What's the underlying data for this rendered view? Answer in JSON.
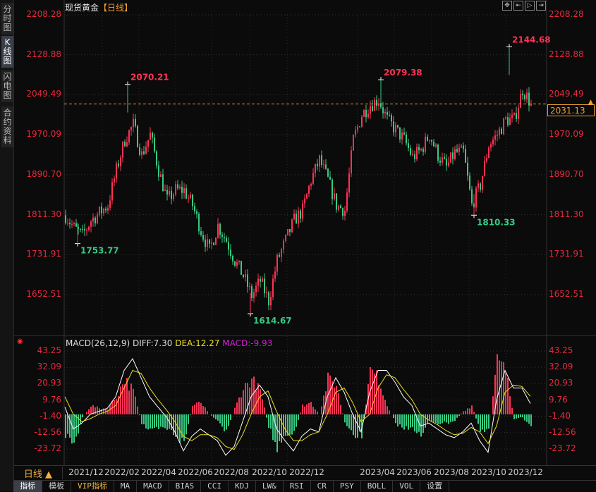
{
  "sidebar": {
    "tabs": [
      {
        "label": "分时图"
      },
      {
        "label": "K线图",
        "active": true
      },
      {
        "label": "闪电图"
      },
      {
        "label": "合约资料"
      }
    ]
  },
  "header": {
    "instrument": "现货黄金",
    "period_open": "【",
    "period": "日线",
    "period_close": "】"
  },
  "toolbar": {
    "icons": [
      "crosshair-icon",
      "zoom-left-icon",
      "zoom-right-icon",
      "move-right-icon"
    ]
  },
  "colors": {
    "up": "#ff3355",
    "down": "#38c983",
    "axis_label": "#e8283e",
    "diff": "#ffffff",
    "dea": "#e8e020",
    "macd": "#d020d0",
    "price_line": "#f0a030"
  },
  "current_price": "2031.13",
  "bottom": {
    "period_button": "日线 ▲",
    "tabs": [
      "指标",
      "模板",
      "VIP指标",
      "MA",
      "MACD",
      "BIAS",
      "CCI",
      "KDJ",
      "LW&",
      "RSI",
      "CR",
      "PSY",
      "BOLL",
      "VOL",
      "设置"
    ]
  },
  "macd": {
    "name": "MACD(26,12,9)",
    "diff_label": "DIFF:7.30",
    "dea_label": "DEA:12.27",
    "macd_label": "MACD:-9.93"
  },
  "chart_data": [
    {
      "type": "candlestick",
      "title": "现货黄金【日线】",
      "ylim": [
        1652.51,
        2208.28
      ],
      "y_ticks": [
        "2208.28",
        "2128.88",
        "2049.49",
        "1970.09",
        "1890.70",
        "1811.30",
        "1731.91",
        "1652.51"
      ],
      "x_ticks": [
        "2021/12",
        "2022/02",
        "2022/04",
        "2022/06",
        "2022/08",
        "2022/10",
        "2022/12",
        "2023/04",
        "2023/06",
        "2023/08",
        "2023/10",
        "2023/12"
      ],
      "close": [
        1810,
        1785,
        1770,
        1800,
        1815,
        1830,
        1900,
        1960,
        1990,
        1930,
        1970,
        1900,
        1840,
        1860,
        1860,
        1830,
        1780,
        1740,
        1790,
        1760,
        1720,
        1690,
        1650,
        1680,
        1640,
        1720,
        1760,
        1800,
        1820,
        1880,
        1920,
        1880,
        1830,
        1820,
        1960,
        2010,
        2030,
        2040,
        2000,
        1980,
        1960,
        1925,
        1940,
        1970,
        1930,
        1905,
        1935,
        1935,
        1830,
        1870,
        1950,
        1970,
        2000,
        2000,
        2060,
        2031.13
      ],
      "annotations": [
        {
          "label": "2070.21",
          "value": 2070.21,
          "kind": "high"
        },
        {
          "label": "1753.77",
          "value": 1753.77,
          "kind": "low"
        },
        {
          "label": "1614.67",
          "value": 1614.67,
          "kind": "low"
        },
        {
          "label": "2079.38",
          "value": 2079.38,
          "kind": "high"
        },
        {
          "label": "1810.33",
          "value": 1810.33,
          "kind": "low"
        },
        {
          "label": "2144.68",
          "value": 2144.68,
          "kind": "high"
        }
      ]
    },
    {
      "type": "line+bar",
      "title": "MACD(26,12,9)",
      "ylim": [
        -23.72,
        43.25
      ],
      "y_ticks": [
        "43.25",
        "32.09",
        "20.93",
        "9.76",
        "-1.40",
        "-12.56",
        "-23.72"
      ],
      "series": [
        {
          "name": "DIFF",
          "values": [
            5,
            -10,
            -6,
            0,
            2,
            4,
            12,
            30,
            38,
            25,
            12,
            5,
            -2,
            -12,
            -25,
            -15,
            -10,
            -14,
            -18,
            -28,
            -22,
            -5,
            12,
            20,
            12,
            -10,
            -18,
            -25,
            -15,
            -10,
            -12,
            12,
            25,
            15,
            0,
            -12,
            15,
            30,
            30,
            22,
            12,
            6,
            -8,
            -6,
            -10,
            -14,
            -16,
            -12,
            -6,
            -18,
            -26,
            10,
            30,
            18,
            18,
            7.3
          ]
        },
        {
          "name": "DEA",
          "values": [
            12,
            0,
            -5,
            -3,
            0,
            2,
            6,
            18,
            30,
            28,
            18,
            10,
            3,
            -5,
            -15,
            -18,
            -14,
            -14,
            -16,
            -22,
            -24,
            -14,
            0,
            12,
            16,
            2,
            -10,
            -18,
            -18,
            -14,
            -12,
            0,
            15,
            18,
            8,
            -5,
            0,
            18,
            27,
            25,
            17,
            10,
            0,
            -4,
            -7,
            -11,
            -14,
            -13,
            -9,
            -12,
            -20,
            -8,
            15,
            20,
            19,
            12.27
          ]
        }
      ]
    }
  ]
}
